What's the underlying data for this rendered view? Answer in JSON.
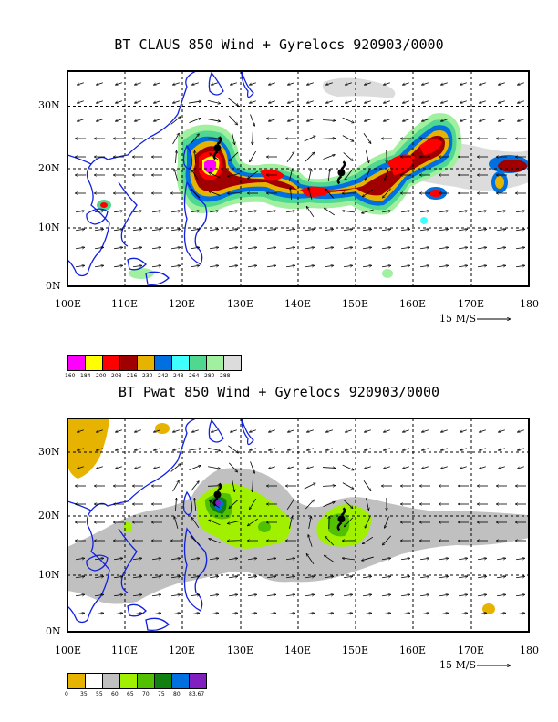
{
  "panels": [
    {
      "id": "top",
      "title": "BT CLAUS 850 Wind + Gyrelocs 920903/0000",
      "lat_ticks": [
        "0N",
        "10N",
        "20N",
        "30N"
      ],
      "lon_ticks": [
        "100E",
        "110E",
        "120E",
        "130E",
        "140E",
        "150E",
        "160E",
        "170E",
        "180"
      ],
      "reference_vector": "15 M/S",
      "colorbar": {
        "labels": [
          "160",
          "184",
          "200",
          "208",
          "216",
          "230",
          "242",
          "248",
          "264",
          "280",
          "288"
        ],
        "colors": [
          "#ff00ff",
          "#ffff00",
          "#ff0000",
          "#a00000",
          "#e6b400",
          "#0070e0",
          "#40ffff",
          "#50d890",
          "#a0f0a0",
          "#dcdcdc"
        ]
      },
      "cyclones": [
        {
          "lon": 126,
          "lat": 22.5
        },
        {
          "lon": 147.5,
          "lat": 18.5
        }
      ]
    },
    {
      "id": "bottom",
      "title": "BT Pwat 850 Wind + Gyrelocs 920903/0000",
      "lat_ticks": [
        "0N",
        "10N",
        "20N",
        "30N"
      ],
      "lon_ticks": [
        "100E",
        "110E",
        "120E",
        "130E",
        "140E",
        "150E",
        "160E",
        "170E",
        "180"
      ],
      "reference_vector": "15 M/S",
      "colorbar": {
        "labels": [
          "0",
          "35",
          "55",
          "60",
          "65",
          "70",
          "75",
          "80",
          "83.67"
        ],
        "colors": [
          "#e6b400",
          "#ffffff",
          "#c0c0c0",
          "#a0f000",
          "#50c000",
          "#108010",
          "#0070e0",
          "#8020c0"
        ]
      },
      "cyclones": [
        {
          "lon": 126,
          "lat": 22.5
        },
        {
          "lon": 147.5,
          "lat": 18.5
        }
      ]
    }
  ]
}
